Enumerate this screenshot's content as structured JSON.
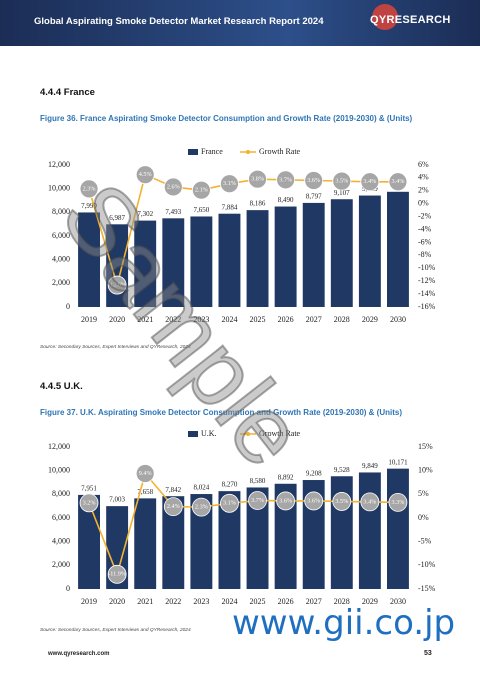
{
  "header": {
    "title": "Global Aspirating Smoke Detector Market Research Report 2024",
    "logo": "QYRESEARCH"
  },
  "sections": [
    {
      "title": "4.4.4  France",
      "caption": "Figure 36.   France Aspirating Smoke Detector Consumption and Growth Rate (2019-2030) & (Units)",
      "source": "Source: Secondary Sources, Expert Interviews and QYResearch, 2024"
    },
    {
      "title": "4.4.5  U.K.",
      "caption": "Figure 37.   U.K. Aspirating Smoke Detector Consumption and Growth Rate (2019-2030) & (Units)",
      "source": "Source: Secondary Sources, Expert Interviews and QYResearch, 2024"
    }
  ],
  "footer": {
    "url": "www.qyresearch.com",
    "page": "53"
  },
  "watermarks": [
    "Sample",
    "www.gii.co.jp"
  ],
  "chart_data": [
    {
      "type": "bar",
      "grid": false,
      "categories": [
        "2019",
        "2020",
        "2021",
        "2022",
        "2023",
        "2024",
        "2025",
        "2026",
        "2027",
        "2028",
        "2029",
        "2030"
      ],
      "series": [
        {
          "name": "France",
          "color": "#1F3864",
          "values": [
            7990,
            6987,
            7302,
            7493,
            7650,
            7884,
            8186,
            8490,
            8797,
            9107,
            9419,
            9735
          ],
          "value_labels": [
            "7,990",
            "6,987",
            "7,302",
            "7,493",
            "7,650",
            "7,884",
            "8,186",
            "8,490",
            "8,797",
            "9,107",
            "9,419",
            "9,735"
          ]
        },
        {
          "name": "Growth Rate",
          "color": "#F2B22E",
          "marker_color": "#A6A6A6",
          "axis": "y2",
          "values": [
            2.3,
            -12.6,
            4.5,
            2.6,
            2.1,
            3.1,
            3.8,
            3.7,
            3.6,
            3.5,
            3.4,
            3.4
          ],
          "value_labels": [
            "2.3%",
            "-12.6%",
            "4.5%",
            "2.6%",
            "2.1%",
            "3.1%",
            "3.8%",
            "3.7%",
            "3.6%",
            "3.5%",
            "3.4%",
            "3.4%"
          ]
        }
      ],
      "ylim": [
        0,
        12000
      ],
      "yticks": [
        0,
        {
          "value": 2000,
          "label": "2,000"
        },
        {
          "value": 4000,
          "label": "4,000"
        },
        {
          "value": 6000,
          "label": "6,000"
        },
        {
          "value": 8000,
          "label": "8,000"
        },
        {
          "value": 10000,
          "label": "10,000"
        },
        {
          "value": 12000,
          "label": "12,000"
        }
      ],
      "y2lim": [
        -16,
        6
      ],
      "y2ticks": [
        {
          "value": -16,
          "label": "-16%"
        },
        {
          "value": -14,
          "label": "-14%"
        },
        {
          "value": -12,
          "label": "-12%"
        },
        {
          "value": -10,
          "label": "-10%"
        },
        {
          "value": -8,
          "label": "-8%"
        },
        {
          "value": -6,
          "label": "-6%"
        },
        {
          "value": -4,
          "label": "-4%"
        },
        {
          "value": -2,
          "label": "-2%"
        },
        {
          "value": 0,
          "label": "0%"
        },
        {
          "value": 2,
          "label": "2%"
        },
        {
          "value": 4,
          "label": "4%"
        },
        {
          "value": 6,
          "label": "6%"
        }
      ]
    },
    {
      "type": "bar",
      "grid": false,
      "categories": [
        "2019",
        "2020",
        "2021",
        "2022",
        "2023",
        "2024",
        "2025",
        "2026",
        "2027",
        "2028",
        "2029",
        "2030"
      ],
      "series": [
        {
          "name": "U.K.",
          "color": "#1F3864",
          "values": [
            7951,
            7003,
            7658,
            7842,
            8024,
            8270,
            8580,
            8892,
            9208,
            9528,
            9849,
            10171
          ],
          "value_labels": [
            "7,951",
            "7,003",
            "7,658",
            "7,842",
            "8,024",
            "8,270",
            "8,580",
            "8,892",
            "9,208",
            "9,528",
            "9,849",
            "10,171"
          ]
        },
        {
          "name": "Growth Rate",
          "color": "#F2B22E",
          "marker_color": "#A6A6A6",
          "axis": "y2",
          "values": [
            3.2,
            -11.9,
            9.4,
            2.4,
            2.3,
            3.1,
            3.7,
            3.6,
            3.6,
            3.5,
            3.4,
            3.3
          ],
          "value_labels": [
            "3.2%",
            "-11.9%",
            "9.4%",
            "2.4%",
            "2.3%",
            "3.1%",
            "3.7%",
            "3.6%",
            "3.6%",
            "3.5%",
            "3.4%",
            "3.3%"
          ]
        }
      ],
      "ylim": [
        0,
        12000
      ],
      "yticks": [
        0,
        {
          "value": 2000,
          "label": "2,000"
        },
        {
          "value": 4000,
          "label": "4,000"
        },
        {
          "value": 6000,
          "label": "6,000"
        },
        {
          "value": 8000,
          "label": "8,000"
        },
        {
          "value": 10000,
          "label": "10,000"
        },
        {
          "value": 12000,
          "label": "12,000"
        }
      ],
      "y2lim": [
        -15,
        15
      ],
      "y2ticks": [
        {
          "value": -15,
          "label": "-15%"
        },
        {
          "value": -10,
          "label": "-10%"
        },
        {
          "value": -5,
          "label": "-5%"
        },
        {
          "value": 0,
          "label": "0%"
        },
        {
          "value": 5,
          "label": "5%"
        },
        {
          "value": 10,
          "label": "10%"
        },
        {
          "value": 15,
          "label": "15%"
        }
      ]
    }
  ]
}
